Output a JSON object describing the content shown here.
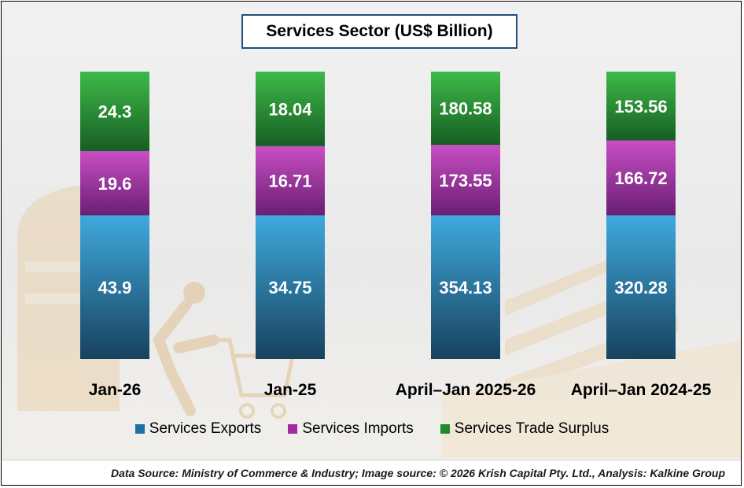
{
  "chart_data": {
    "type": "bar",
    "stacked": true,
    "normalized": true,
    "title": "Services Sector  (US$ Billion)",
    "categories": [
      "Jan-26",
      "Jan-25",
      "April–Jan 2025-26",
      "April–Jan 2024-25"
    ],
    "series": [
      {
        "name": "Services Exports",
        "values": [
          43.9,
          34.75,
          354.13,
          320.28
        ],
        "labels": [
          "43.9",
          "34.75",
          "354.13",
          "320.28"
        ]
      },
      {
        "name": "Services Imports",
        "values": [
          19.6,
          16.71,
          173.55,
          166.72
        ],
        "labels": [
          "19.6",
          "16.71",
          "173.55",
          "166.72"
        ]
      },
      {
        "name": "Services Trade Surplus",
        "values": [
          24.3,
          18.04,
          180.58,
          153.56
        ],
        "labels": [
          "24.3",
          "18.04",
          "180.58",
          "153.56"
        ]
      }
    ],
    "xlabel": "",
    "ylabel": "",
    "legend_position": "bottom"
  },
  "colors": {
    "exports_top": "#3fa9dd",
    "exports_bottom": "#17425e",
    "imports_top": "#c84ec4",
    "imports_bottom": "#6a1f73",
    "surplus_top": "#3dba48",
    "surplus_bottom": "#175e23",
    "title_border": "#1f4e79",
    "legend_exports": "#1e6fa3",
    "legend_imports": "#a5289e",
    "legend_surplus": "#1f8a2d"
  },
  "legend": {
    "exports": "Services Exports",
    "imports": "Services Imports",
    "surplus": "Services Trade Surplus"
  },
  "source": "Data Source: Ministry of Commerce & Industry; Image source: © 2026 Krish Capital Pty. Ltd., Analysis: Kalkine Group"
}
